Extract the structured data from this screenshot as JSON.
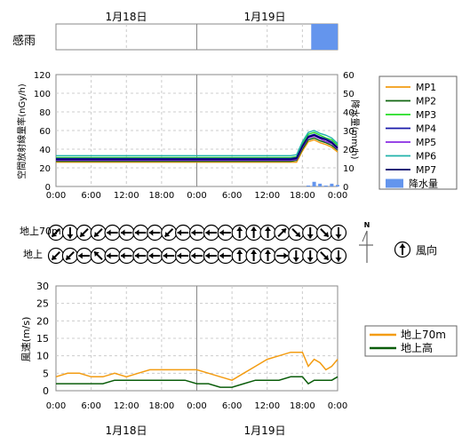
{
  "dates": [
    "1月18日",
    "1月19日"
  ],
  "x_ticks": [
    "0:00",
    "6:00",
    "12:00",
    "18:00",
    "0:00",
    "6:00",
    "12:00",
    "18:00",
    "0:00"
  ],
  "colors": {
    "MP1": "#f39c12",
    "MP2": "#116611",
    "MP3": "#22dd22",
    "MP4": "#1a1aaa",
    "MP5": "#8a2be2",
    "MP6": "#20b2aa",
    "MP7": "#000066",
    "rain": "#6495ed",
    "wind70": "#f39c12",
    "windGround": "#0b5d0b"
  },
  "chart_data": [
    {
      "type": "bar",
      "label": "感雨",
      "x_range_hours": [
        0,
        48
      ],
      "rain_sensed": [
        {
          "start_hour": 43.5,
          "end_hour": 48
        }
      ]
    },
    {
      "type": "line",
      "ylabel": "空間放射線量率(nGy/h)",
      "ylabel_right": "降水量(mm/h)",
      "ylim": [
        0,
        120
      ],
      "y_ticks": [
        0,
        20,
        40,
        60,
        80,
        100,
        120
      ],
      "ylim_right": [
        0,
        60
      ],
      "y_ticks_right": [
        0,
        10,
        20,
        30,
        40,
        50,
        60
      ],
      "x_range_hours": [
        0,
        48
      ],
      "legend": [
        "MP1",
        "MP2",
        "MP3",
        "MP4",
        "MP5",
        "MP6",
        "MP7",
        "降水量"
      ],
      "series": [
        {
          "name": "MP1",
          "x": [
            0,
            12,
            24,
            36,
            40,
            41,
            42,
            43,
            44,
            45,
            46,
            47,
            48
          ],
          "values": [
            26,
            26,
            26,
            26,
            26,
            26,
            38,
            48,
            50,
            47,
            45,
            42,
            37
          ]
        },
        {
          "name": "MP2",
          "x": [
            0,
            12,
            24,
            36,
            40,
            41,
            42,
            43,
            44,
            45,
            46,
            47,
            48
          ],
          "values": [
            27,
            27,
            27,
            27,
            27,
            28,
            40,
            50,
            52,
            49,
            47,
            44,
            39
          ]
        },
        {
          "name": "MP3",
          "x": [
            0,
            12,
            24,
            36,
            40,
            41,
            42,
            43,
            44,
            45,
            46,
            47,
            48
          ],
          "values": [
            31,
            31,
            31,
            31,
            31,
            32,
            46,
            56,
            58,
            55,
            52,
            50,
            44
          ]
        },
        {
          "name": "MP4",
          "x": [
            0,
            12,
            24,
            36,
            40,
            41,
            42,
            43,
            44,
            45,
            46,
            47,
            48
          ],
          "values": [
            30,
            30,
            30,
            30,
            30,
            31,
            44,
            54,
            56,
            53,
            51,
            48,
            42
          ]
        },
        {
          "name": "MP5",
          "x": [
            0,
            12,
            24,
            36,
            40,
            41,
            42,
            43,
            44,
            45,
            46,
            47,
            48
          ],
          "values": [
            28,
            28,
            28,
            28,
            28,
            29,
            42,
            52,
            54,
            51,
            48,
            46,
            40
          ]
        },
        {
          "name": "MP6",
          "x": [
            0,
            12,
            24,
            36,
            40,
            41,
            42,
            43,
            44,
            45,
            46,
            47,
            48
          ],
          "values": [
            33,
            33,
            33,
            33,
            33,
            34,
            48,
            58,
            60,
            57,
            55,
            52,
            46
          ]
        },
        {
          "name": "MP7",
          "x": [
            0,
            12,
            24,
            36,
            40,
            41,
            42,
            43,
            44,
            45,
            46,
            47,
            48
          ],
          "values": [
            29,
            29,
            29,
            29,
            29,
            30,
            43,
            53,
            55,
            52,
            50,
            47,
            41
          ]
        }
      ],
      "rain_mm_h": {
        "x": [
          43,
          44,
          45,
          46,
          47,
          48
        ],
        "values": [
          0.5,
          2.5,
          1.5,
          0.5,
          1.5,
          0.8
        ]
      }
    },
    {
      "type": "wind_direction",
      "rows": [
        {
          "label": "地上70m",
          "angles": [
            225,
            180,
            225,
            225,
            270,
            270,
            270,
            270,
            225,
            270,
            270,
            270,
            270,
            0,
            0,
            0,
            45,
            135,
            180,
            135,
            180
          ]
        },
        {
          "label": "地上",
          "angles": [
            225,
            225,
            270,
            315,
            270,
            270,
            270,
            270,
            270,
            270,
            270,
            270,
            270,
            0,
            0,
            0,
            90,
            180,
            180,
            135,
            180
          ]
        }
      ],
      "legend_label": "風向",
      "north_label": "N"
    },
    {
      "type": "line",
      "ylabel": "風速(m/s)",
      "ylim": [
        0,
        30
      ],
      "y_ticks": [
        0,
        5,
        10,
        15,
        20,
        25,
        30
      ],
      "x_range_hours": [
        0,
        48
      ],
      "legend": [
        "地上70m",
        "地上高"
      ],
      "series": [
        {
          "name": "地上70m",
          "x": [
            0,
            2,
            4,
            6,
            8,
            10,
            12,
            14,
            16,
            18,
            20,
            22,
            24,
            26,
            28,
            30,
            32,
            34,
            36,
            38,
            40,
            42,
            43,
            44,
            45,
            46,
            47,
            48
          ],
          "values": [
            4,
            5,
            5,
            4,
            4,
            5,
            4,
            5,
            6,
            6,
            6,
            6,
            6,
            5,
            4,
            3,
            5,
            7,
            9,
            10,
            11,
            11,
            7,
            9,
            8,
            6,
            7,
            9
          ]
        },
        {
          "name": "地上高",
          "x": [
            0,
            2,
            4,
            6,
            8,
            10,
            12,
            14,
            16,
            18,
            20,
            22,
            24,
            26,
            28,
            30,
            32,
            34,
            36,
            38,
            40,
            42,
            43,
            44,
            45,
            46,
            47,
            48
          ],
          "values": [
            2,
            2,
            2,
            2,
            2,
            3,
            3,
            3,
            3,
            3,
            3,
            3,
            2,
            2,
            1,
            1,
            2,
            3,
            3,
            3,
            4,
            4,
            2,
            3,
            3,
            3,
            3,
            4
          ]
        }
      ]
    }
  ]
}
